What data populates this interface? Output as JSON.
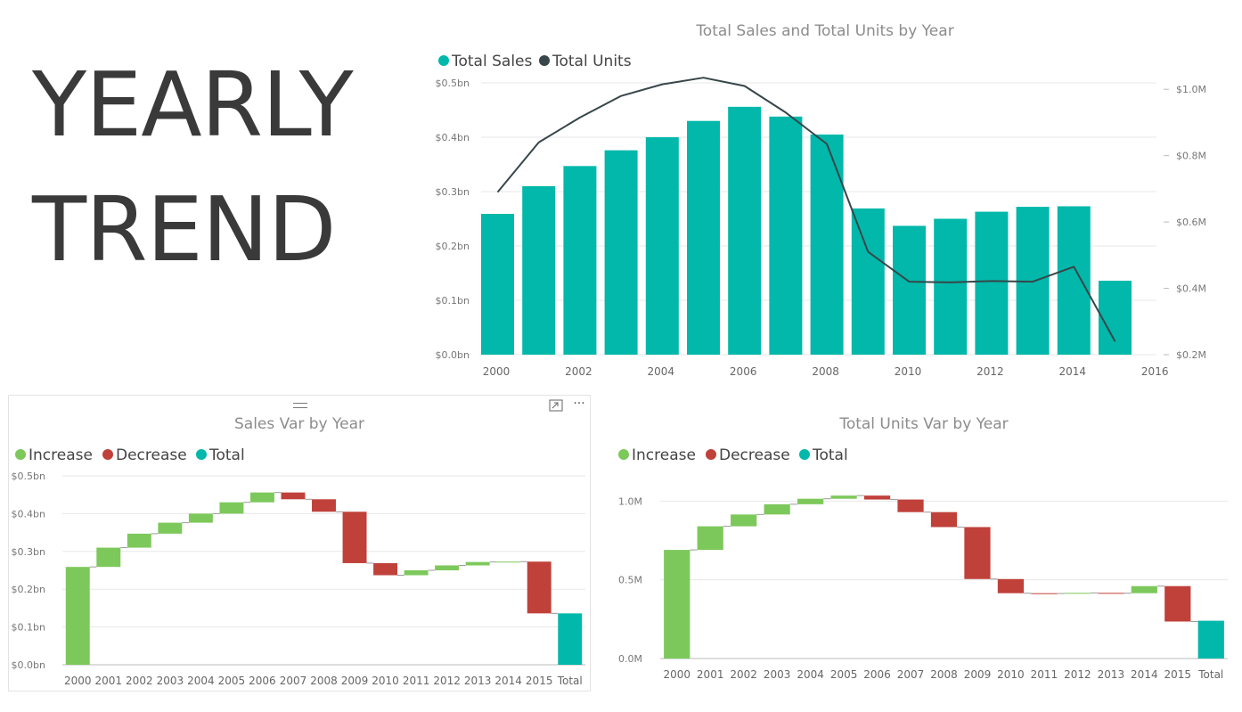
{
  "headline": {
    "line1": "YEARLY",
    "line2": "TREND"
  },
  "sales_var_toolbar": {
    "more_label": "···"
  },
  "chart_data": [
    {
      "type": "bar",
      "title": "Total Sales and Total Units by Year",
      "legend_position": "top-left",
      "x": [
        2000,
        2001,
        2002,
        2003,
        2004,
        2005,
        2006,
        2007,
        2008,
        2009,
        2010,
        2011,
        2012,
        2013,
        2014,
        2015
      ],
      "x_ticks": [
        "2000",
        "2002",
        "2004",
        "2006",
        "2008",
        "2010",
        "2012",
        "2014",
        "2016"
      ],
      "xlim": [
        2000,
        2016
      ],
      "y_ticks": [
        "$0.0bn",
        "$0.1bn",
        "$0.2bn",
        "$0.3bn",
        "$0.4bn",
        "$0.5bn"
      ],
      "ylim": [
        0,
        0.5
      ],
      "y2_ticks": [
        "$0.2M",
        "$0.4M",
        "$0.6M",
        "$0.8M",
        "$1.0M"
      ],
      "y2lim": [
        0.2,
        1.1
      ],
      "grid": true,
      "series": [
        {
          "name": "Total Sales",
          "type": "bar",
          "color": "#01B8AA",
          "values": [
            0.259,
            0.31,
            0.347,
            0.376,
            0.4,
            0.43,
            0.456,
            0.438,
            0.405,
            0.269,
            0.237,
            0.25,
            0.263,
            0.272,
            0.273,
            0.136
          ]
        },
        {
          "name": "Total Units",
          "type": "line",
          "axis": "right",
          "color": "#374649",
          "values": [
            0.69,
            0.84,
            0.915,
            0.98,
            1.015,
            1.035,
            1.01,
            0.93,
            0.835,
            0.51,
            0.42,
            0.418,
            0.422,
            0.42,
            0.465,
            0.24
          ]
        }
      ]
    },
    {
      "type": "waterfall",
      "title": "Sales Var by Year",
      "legend_position": "top-left",
      "legend": [
        {
          "name": "Increase",
          "color": "#7DC85B"
        },
        {
          "name": "Decrease",
          "color": "#C0413A"
        },
        {
          "name": "Total",
          "color": "#01B8AA"
        }
      ],
      "categories": [
        "2000",
        "2001",
        "2002",
        "2003",
        "2004",
        "2005",
        "2006",
        "2007",
        "2008",
        "2009",
        "2010",
        "2011",
        "2012",
        "2013",
        "2014",
        "2015",
        "Total"
      ],
      "changes": [
        0.259,
        0.051,
        0.037,
        0.029,
        0.024,
        0.03,
        0.026,
        -0.018,
        -0.033,
        -0.136,
        -0.032,
        0.013,
        0.013,
        0.009,
        0.001,
        -0.137
      ],
      "total": 0.136,
      "y_ticks": [
        "$0.0bn",
        "$0.1bn",
        "$0.2bn",
        "$0.3bn",
        "$0.4bn",
        "$0.5bn"
      ],
      "ylim": [
        0,
        0.5
      ],
      "grid": true
    },
    {
      "type": "waterfall",
      "title": "Total Units Var by Year",
      "legend_position": "top-left",
      "legend": [
        {
          "name": "Increase",
          "color": "#7DC85B"
        },
        {
          "name": "Decrease",
          "color": "#C0413A"
        },
        {
          "name": "Total",
          "color": "#01B8AA"
        }
      ],
      "categories": [
        "2000",
        "2001",
        "2002",
        "2003",
        "2004",
        "2005",
        "2006",
        "2007",
        "2008",
        "2009",
        "2010",
        "2011",
        "2012",
        "2013",
        "2014",
        "2015",
        "Total"
      ],
      "changes": [
        0.69,
        0.15,
        0.075,
        0.065,
        0.035,
        0.02,
        -0.025,
        -0.08,
        -0.095,
        -0.33,
        -0.09,
        -0.002,
        0.004,
        -0.002,
        0.045,
        -0.225
      ],
      "total": 0.24,
      "y_ticks": [
        "0.0M",
        "0.5M",
        "1.0M"
      ],
      "ylim": [
        0,
        1.2
      ],
      "grid": true
    }
  ]
}
